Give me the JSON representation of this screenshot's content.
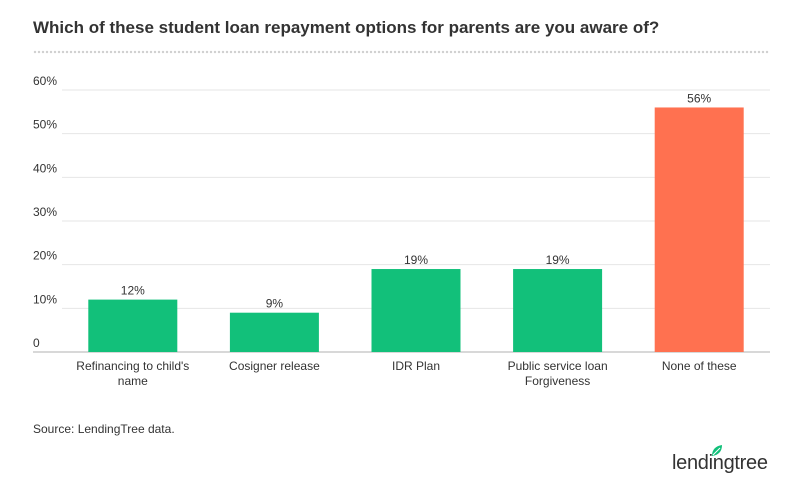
{
  "title": "Which of these student loan repayment options for parents are you aware of?",
  "source": "Source: LendingTree data.",
  "logo_text": "lendingtree",
  "colors": {
    "bar": "#12c07a",
    "highlight": "#ff7150",
    "grid": "#e6e6e6",
    "axis": "#b0b0b0"
  },
  "chart_data": {
    "type": "bar",
    "categories": [
      [
        "Refinancing to child's",
        "name"
      ],
      [
        "Cosigner release"
      ],
      [
        "IDR Plan"
      ],
      [
        "Public service loan",
        "Forgiveness"
      ],
      [
        "None of these"
      ]
    ],
    "values": [
      12,
      9,
      19,
      19,
      56
    ],
    "data_labels": [
      "12%",
      "9%",
      "19%",
      "19%",
      "56%"
    ],
    "highlight_index": 4,
    "ylim": [
      0,
      60
    ],
    "yticks": [
      0,
      10,
      20,
      30,
      40,
      50,
      60
    ],
    "ytick_labels": [
      "0",
      "10%",
      "20%",
      "30%",
      "40%",
      "50%",
      "60%"
    ],
    "grid": true,
    "legend": "none"
  }
}
